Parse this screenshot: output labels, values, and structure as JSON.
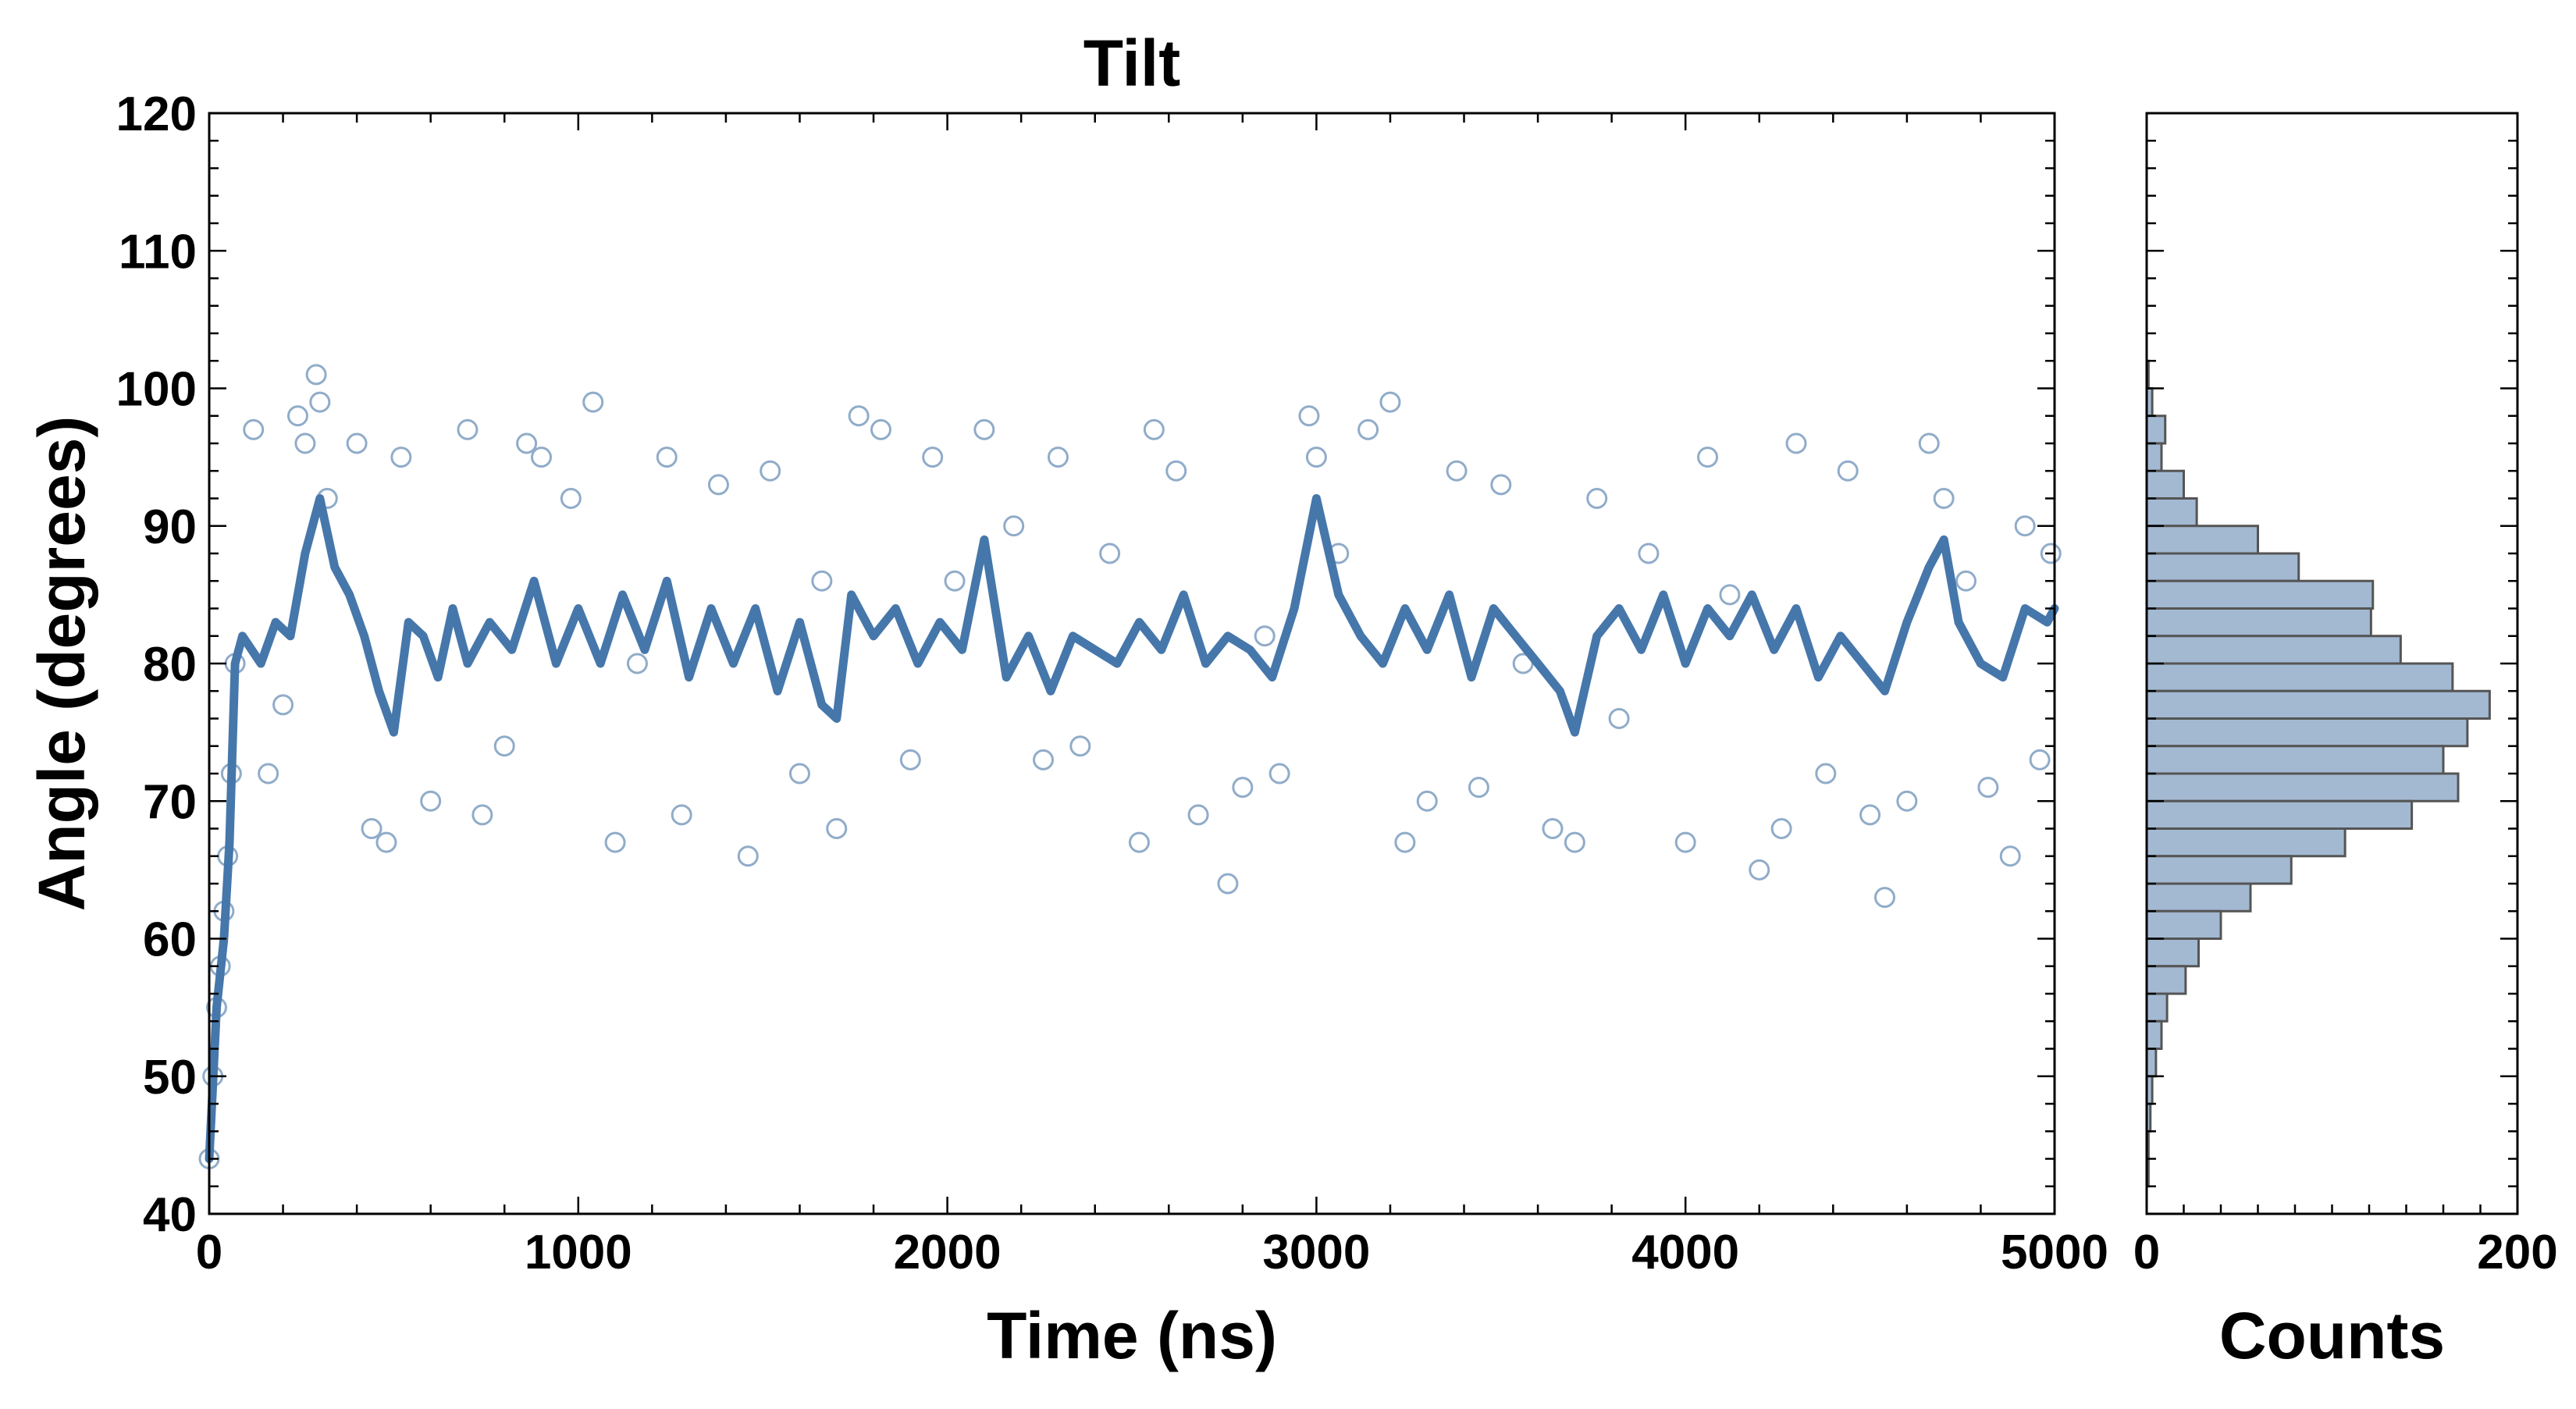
{
  "chart_data": {
    "type": "scatter",
    "title": "Tilt",
    "xlabel": "Time (ns)",
    "ylabel": "Angle (degrees)",
    "xlim": [
      0,
      5000
    ],
    "ylim": [
      40,
      120
    ],
    "x_ticks": [
      "0",
      "1000",
      "2000",
      "3000",
      "4000",
      "5000"
    ],
    "y_ticks": [
      "40",
      "50",
      "60",
      "70",
      "80",
      "90",
      "100",
      "110",
      "120"
    ],
    "grid": false,
    "colors": {
      "line": "#4677ab",
      "points": "#90acc9",
      "bars_fill": "#a3b9d2",
      "bars_edge": "#555555"
    },
    "scatter_points": [
      [
        0,
        44
      ],
      [
        10,
        50
      ],
      [
        20,
        55
      ],
      [
        30,
        58
      ],
      [
        40,
        62
      ],
      [
        50,
        66
      ],
      [
        60,
        72
      ],
      [
        70,
        80
      ],
      [
        120,
        97
      ],
      [
        160,
        72
      ],
      [
        200,
        77
      ],
      [
        240,
        98
      ],
      [
        260,
        96
      ],
      [
        290,
        101
      ],
      [
        300,
        99
      ],
      [
        320,
        92
      ],
      [
        400,
        96
      ],
      [
        440,
        68
      ],
      [
        480,
        67
      ],
      [
        520,
        95
      ],
      [
        600,
        70
      ],
      [
        700,
        97
      ],
      [
        740,
        69
      ],
      [
        800,
        74
      ],
      [
        860,
        96
      ],
      [
        900,
        95
      ],
      [
        980,
        92
      ],
      [
        1040,
        99
      ],
      [
        1100,
        67
      ],
      [
        1160,
        80
      ],
      [
        1240,
        95
      ],
      [
        1280,
        69
      ],
      [
        1380,
        93
      ],
      [
        1460,
        66
      ],
      [
        1520,
        94
      ],
      [
        1600,
        72
      ],
      [
        1660,
        86
      ],
      [
        1700,
        68
      ],
      [
        1760,
        98
      ],
      [
        1820,
        97
      ],
      [
        1900,
        73
      ],
      [
        1960,
        95
      ],
      [
        2020,
        86
      ],
      [
        2100,
        97
      ],
      [
        2180,
        90
      ],
      [
        2260,
        73
      ],
      [
        2300,
        95
      ],
      [
        2360,
        74
      ],
      [
        2440,
        88
      ],
      [
        2520,
        67
      ],
      [
        2560,
        97
      ],
      [
        2620,
        94
      ],
      [
        2680,
        69
      ],
      [
        2760,
        64
      ],
      [
        2800,
        71
      ],
      [
        2860,
        82
      ],
      [
        2900,
        72
      ],
      [
        2980,
        98
      ],
      [
        3000,
        95
      ],
      [
        3060,
        88
      ],
      [
        3140,
        97
      ],
      [
        3200,
        99
      ],
      [
        3240,
        67
      ],
      [
        3300,
        70
      ],
      [
        3380,
        94
      ],
      [
        3440,
        71
      ],
      [
        3500,
        93
      ],
      [
        3560,
        80
      ],
      [
        3640,
        68
      ],
      [
        3700,
        67
      ],
      [
        3760,
        92
      ],
      [
        3820,
        76
      ],
      [
        3900,
        88
      ],
      [
        4000,
        67
      ],
      [
        4060,
        95
      ],
      [
        4120,
        85
      ],
      [
        4200,
        65
      ],
      [
        4260,
        68
      ],
      [
        4300,
        96
      ],
      [
        4380,
        72
      ],
      [
        4440,
        94
      ],
      [
        4500,
        69
      ],
      [
        4540,
        63
      ],
      [
        4600,
        70
      ],
      [
        4660,
        96
      ],
      [
        4700,
        92
      ],
      [
        4760,
        86
      ],
      [
        4820,
        71
      ],
      [
        4880,
        66
      ],
      [
        4920,
        90
      ],
      [
        4960,
        73
      ],
      [
        4990,
        88
      ]
    ],
    "running_average": [
      [
        0,
        44
      ],
      [
        20,
        55
      ],
      [
        40,
        60
      ],
      [
        55,
        67
      ],
      [
        70,
        80
      ],
      [
        90,
        82
      ],
      [
        140,
        80
      ],
      [
        180,
        83
      ],
      [
        220,
        82
      ],
      [
        260,
        88
      ],
      [
        300,
        92
      ],
      [
        340,
        87
      ],
      [
        380,
        85
      ],
      [
        420,
        82
      ],
      [
        460,
        78
      ],
      [
        500,
        75
      ],
      [
        540,
        83
      ],
      [
        580,
        82
      ],
      [
        620,
        79
      ],
      [
        660,
        84
      ],
      [
        700,
        80
      ],
      [
        760,
        83
      ],
      [
        820,
        81
      ],
      [
        880,
        86
      ],
      [
        940,
        80
      ],
      [
        1000,
        84
      ],
      [
        1060,
        80
      ],
      [
        1120,
        85
      ],
      [
        1180,
        81
      ],
      [
        1240,
        86
      ],
      [
        1300,
        79
      ],
      [
        1360,
        84
      ],
      [
        1420,
        80
      ],
      [
        1480,
        84
      ],
      [
        1540,
        78
      ],
      [
        1600,
        83
      ],
      [
        1660,
        77
      ],
      [
        1700,
        76
      ],
      [
        1740,
        85
      ],
      [
        1800,
        82
      ],
      [
        1860,
        84
      ],
      [
        1920,
        80
      ],
      [
        1980,
        83
      ],
      [
        2040,
        81
      ],
      [
        2100,
        89
      ],
      [
        2160,
        79
      ],
      [
        2220,
        82
      ],
      [
        2280,
        78
      ],
      [
        2340,
        82
      ],
      [
        2400,
        81
      ],
      [
        2460,
        80
      ],
      [
        2520,
        83
      ],
      [
        2580,
        81
      ],
      [
        2640,
        85
      ],
      [
        2700,
        80
      ],
      [
        2760,
        82
      ],
      [
        2820,
        81
      ],
      [
        2880,
        79
      ],
      [
        2940,
        84
      ],
      [
        3000,
        92
      ],
      [
        3060,
        85
      ],
      [
        3120,
        82
      ],
      [
        3180,
        80
      ],
      [
        3240,
        84
      ],
      [
        3300,
        81
      ],
      [
        3360,
        85
      ],
      [
        3420,
        79
      ],
      [
        3480,
        84
      ],
      [
        3540,
        82
      ],
      [
        3600,
        80
      ],
      [
        3660,
        78
      ],
      [
        3700,
        75
      ],
      [
        3760,
        82
      ],
      [
        3820,
        84
      ],
      [
        3880,
        81
      ],
      [
        3940,
        85
      ],
      [
        4000,
        80
      ],
      [
        4060,
        84
      ],
      [
        4120,
        82
      ],
      [
        4180,
        85
      ],
      [
        4240,
        81
      ],
      [
        4300,
        84
      ],
      [
        4360,
        79
      ],
      [
        4420,
        82
      ],
      [
        4480,
        80
      ],
      [
        4540,
        78
      ],
      [
        4600,
        83
      ],
      [
        4660,
        87
      ],
      [
        4700,
        89
      ],
      [
        4740,
        83
      ],
      [
        4800,
        80
      ],
      [
        4860,
        79
      ],
      [
        4920,
        84
      ],
      [
        4980,
        83
      ],
      [
        5000,
        84
      ]
    ],
    "histogram": {
      "xlabel": "Counts",
      "xlim": [
        0,
        200
      ],
      "x_ticks": [
        "0",
        "200"
      ],
      "bin_width": 2,
      "bins": [
        [
          100,
          1
        ],
        [
          98,
          3
        ],
        [
          96,
          10
        ],
        [
          94,
          8
        ],
        [
          92,
          20
        ],
        [
          90,
          27
        ],
        [
          88,
          60
        ],
        [
          86,
          82
        ],
        [
          84,
          122
        ],
        [
          82,
          121
        ],
        [
          80,
          137
        ],
        [
          78,
          165
        ],
        [
          76,
          185
        ],
        [
          74,
          173
        ],
        [
          72,
          160
        ],
        [
          70,
          168
        ],
        [
          68,
          143
        ],
        [
          66,
          107
        ],
        [
          64,
          78
        ],
        [
          62,
          56
        ],
        [
          60,
          40
        ],
        [
          58,
          28
        ],
        [
          56,
          21
        ],
        [
          54,
          11
        ],
        [
          52,
          8
        ],
        [
          50,
          5
        ],
        [
          48,
          3
        ],
        [
          46,
          2
        ],
        [
          44,
          1
        ],
        [
          42,
          1
        ]
      ]
    }
  }
}
